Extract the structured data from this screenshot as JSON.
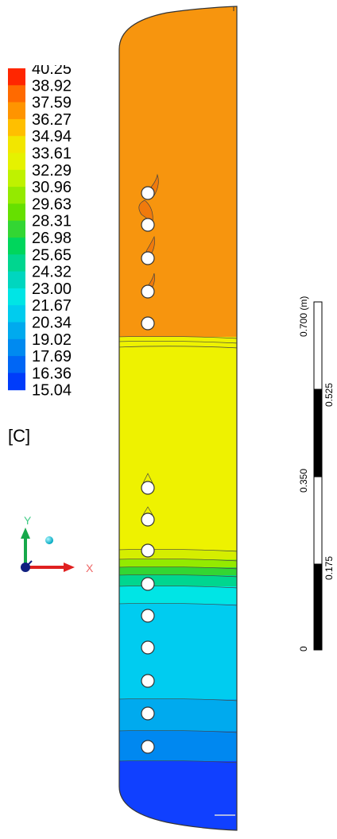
{
  "legend": {
    "values": [
      "40.25",
      "38.92",
      "37.59",
      "36.27",
      "34.94",
      "33.61",
      "32.29",
      "30.96",
      "29.63",
      "28.31",
      "26.98",
      "25.65",
      "24.32",
      "23.00",
      "21.67",
      "20.34",
      "19.02",
      "17.69",
      "16.36",
      "15.04"
    ],
    "colors": [
      "#ff2600",
      "#ff6a00",
      "#ff9400",
      "#ffbf00",
      "#f2e600",
      "#e5f200",
      "#bff200",
      "#94ea00",
      "#66e000",
      "#33d633",
      "#00d65c",
      "#00d68f",
      "#00d6bf",
      "#00e5e5",
      "#00ccee",
      "#00aaee",
      "#008af0",
      "#0066f5",
      "#003cfa",
      "#0014ff"
    ],
    "unit": "[C]"
  },
  "axes": {
    "y_label": "Y",
    "x_label": "X"
  },
  "scale_bar": {
    "unit_label": "0.700 (m)",
    "ticks": [
      "0",
      "0.175",
      "0.350",
      "0.525"
    ]
  },
  "field_colors": {
    "orange": "#f7950e",
    "yellow": "#eef200",
    "blue": "#00ccf0",
    "dark_blue": "#1040ff"
  }
}
